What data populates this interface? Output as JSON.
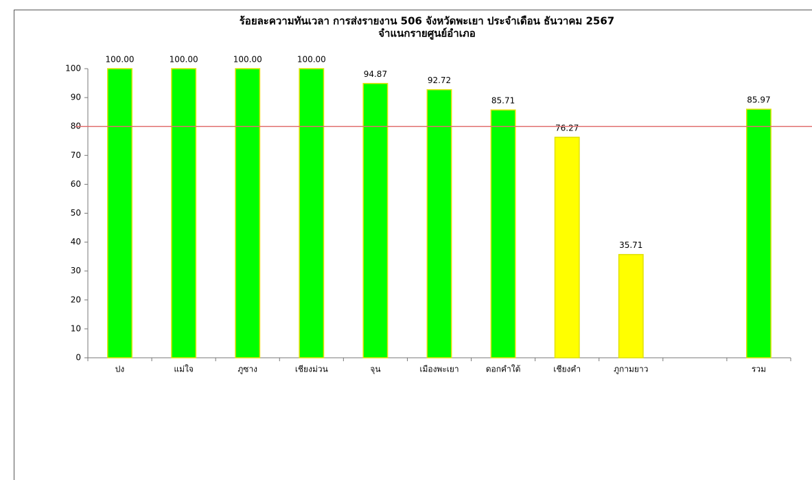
{
  "chart_data": {
    "type": "bar",
    "title": "ร้อยละความทันเวลา การส่งรายงาน 506 จังหวัดพะเยา  ประจำเดือน ธันวาคม 2567",
    "subtitle": "จำแนกรายศูนย์อำเภอ",
    "categories": [
      "ปง",
      "แม่ใจ",
      "ภูซาง",
      "เชียงม่วน",
      "จุน",
      "เมืองพะเยา",
      "ดอกคำใต้",
      "เชียงคำ",
      "ภูกามยาว",
      null,
      "รวม"
    ],
    "values": [
      100,
      100,
      100,
      100,
      94.87,
      92.72,
      85.71,
      76.27,
      35.71,
      null,
      85.97
    ],
    "value_labels": [
      "100.00",
      "100.00",
      "100.00",
      "100.00",
      "94.87",
      "92.72",
      "85.71",
      "76.27",
      "35.71",
      null,
      "85.97"
    ],
    "colors": [
      "#00ff00",
      "#00ff00",
      "#00ff00",
      "#00ff00",
      "#00ff00",
      "#00ff00",
      "#00ff00",
      "#ffff00",
      "#ffff00",
      null,
      "#00ff00"
    ],
    "edge_color": "#e0e000",
    "ylim": [
      0,
      100
    ],
    "yticks": [
      0,
      10,
      20,
      30,
      40,
      50,
      60,
      70,
      80,
      90,
      100
    ],
    "reference_line": {
      "value": 80,
      "color": "#e07070"
    }
  }
}
